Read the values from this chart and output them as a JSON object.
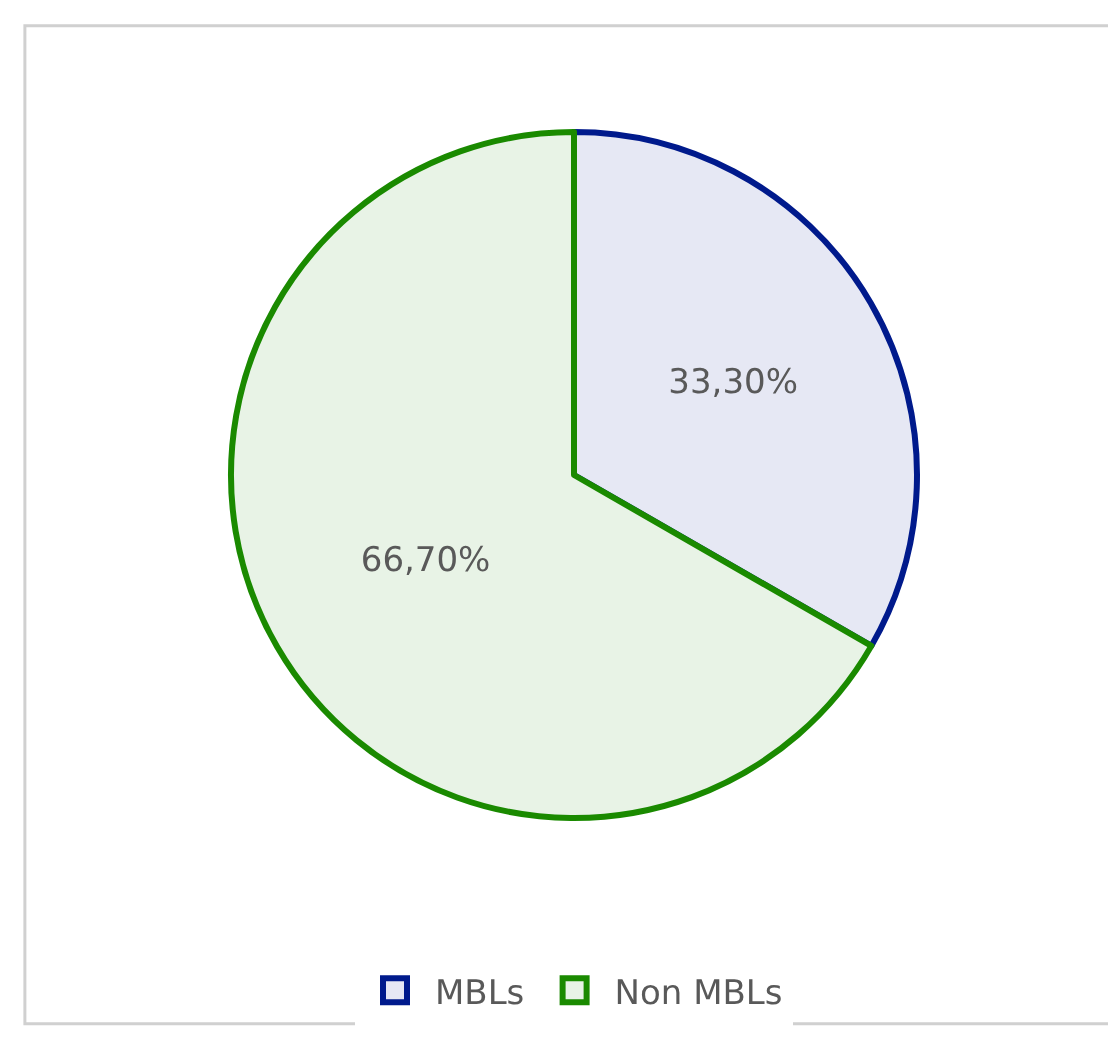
{
  "chart_data": {
    "type": "pie",
    "categories": [
      "MBLs",
      "Non MBLs"
    ],
    "values": [
      33.3,
      66.7
    ],
    "colors": [
      "#001a8c",
      "#1a8a00"
    ],
    "value_labels": [
      "33,30%",
      "66,70%"
    ],
    "legend": "bottom"
  }
}
